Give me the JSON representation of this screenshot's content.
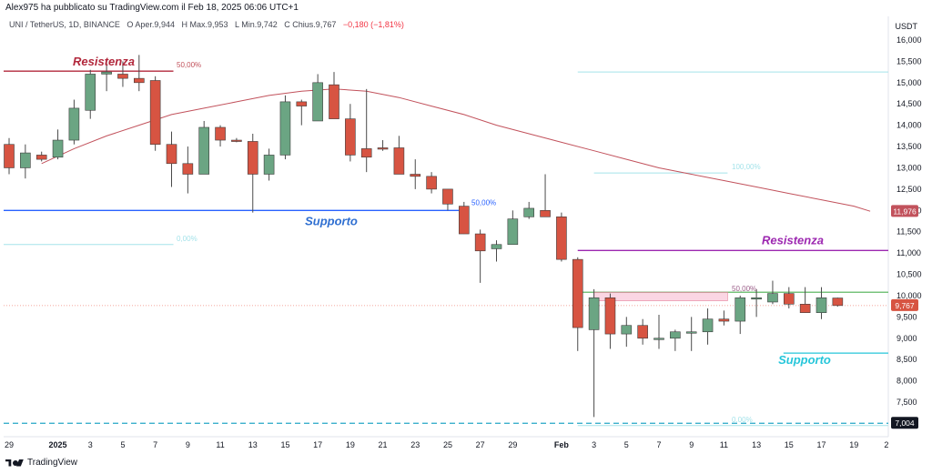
{
  "header": {
    "published_by": "Alex975 ha pubblicato su TradingView.com il Feb 18, 2025 06:06 UTC+1",
    "symbol": "UNI / TetherUS, 1D, BINANCE",
    "open_label": "O",
    "open": "Aper.9,944",
    "high_label": "H",
    "high": "Max.9,953",
    "low_label": "L",
    "low": "Min.9,742",
    "close_label": "C",
    "close": "Chius.9,767",
    "change": "−0,180 (−1,81%)"
  },
  "brand": "TradingView",
  "colors": {
    "up": "#6ba583",
    "down": "#d75442",
    "ma": "#c2525c",
    "support": "#2962ff",
    "resistance": "#9c27b0",
    "teal": "#26c6da"
  },
  "chart_data": {
    "type": "candlestick",
    "unit": "USDT",
    "ylim": [
      6700,
      16300
    ],
    "y_ticks": [
      {
        "v": 16000,
        "label": "16,000"
      },
      {
        "v": 15500,
        "label": "15,500"
      },
      {
        "v": 15000,
        "label": "15,000"
      },
      {
        "v": 14500,
        "label": "14,500"
      },
      {
        "v": 14000,
        "label": "14,000"
      },
      {
        "v": 13500,
        "label": "13,500"
      },
      {
        "v": 13000,
        "label": "13,000"
      },
      {
        "v": 12500,
        "label": "12,500"
      },
      {
        "v": 12000,
        "label": "12,000"
      },
      {
        "v": 11500,
        "label": "11,500"
      },
      {
        "v": 11000,
        "label": "11,000"
      },
      {
        "v": 10500,
        "label": "10,500"
      },
      {
        "v": 10000,
        "label": "10,000"
      },
      {
        "v": 9500,
        "label": "9,500"
      },
      {
        "v": 9000,
        "label": "9,000"
      },
      {
        "v": 8500,
        "label": "8,500"
      },
      {
        "v": 8000,
        "label": "8,000"
      },
      {
        "v": 7500,
        "label": "7,500"
      }
    ],
    "x_ticks": [
      {
        "i": 0,
        "label": "29"
      },
      {
        "i": 3,
        "label": "2025"
      },
      {
        "i": 5,
        "label": "3"
      },
      {
        "i": 7,
        "label": "5"
      },
      {
        "i": 9,
        "label": "7"
      },
      {
        "i": 11,
        "label": "9"
      },
      {
        "i": 13,
        "label": "11"
      },
      {
        "i": 15,
        "label": "13"
      },
      {
        "i": 17,
        "label": "15"
      },
      {
        "i": 19,
        "label": "17"
      },
      {
        "i": 21,
        "label": "19"
      },
      {
        "i": 23,
        "label": "21"
      },
      {
        "i": 25,
        "label": "23"
      },
      {
        "i": 27,
        "label": "25"
      },
      {
        "i": 29,
        "label": "27"
      },
      {
        "i": 31,
        "label": "29"
      },
      {
        "i": 34,
        "label": "Feb"
      },
      {
        "i": 36,
        "label": "3"
      },
      {
        "i": 38,
        "label": "5"
      },
      {
        "i": 40,
        "label": "7"
      },
      {
        "i": 42,
        "label": "9"
      },
      {
        "i": 44,
        "label": "11"
      },
      {
        "i": 46,
        "label": "13"
      },
      {
        "i": 48,
        "label": "15"
      },
      {
        "i": 50,
        "label": "17"
      },
      {
        "i": 52,
        "label": "19"
      },
      {
        "i": 54,
        "label": "2"
      }
    ],
    "candles": [
      [
        13550,
        13700,
        12850,
        13000
      ],
      [
        13000,
        13550,
        12750,
        13350
      ],
      [
        13300,
        13380,
        13150,
        13200
      ],
      [
        13250,
        13900,
        13200,
        13650
      ],
      [
        13650,
        14600,
        13550,
        14400
      ],
      [
        14350,
        15300,
        14150,
        15200
      ],
      [
        15200,
        15500,
        14800,
        15250
      ],
      [
        15200,
        15500,
        14900,
        15100
      ],
      [
        15100,
        15650,
        14800,
        15000
      ],
      [
        15050,
        15150,
        13400,
        13550
      ],
      [
        13550,
        13850,
        12550,
        13100
      ],
      [
        13100,
        13500,
        12400,
        12850
      ],
      [
        12850,
        14100,
        12850,
        13950
      ],
      [
        13950,
        14000,
        13500,
        13650
      ],
      [
        13650,
        13700,
        13600,
        13620
      ],
      [
        13620,
        13800,
        11950,
        12850
      ],
      [
        12850,
        13450,
        12700,
        13300
      ],
      [
        13300,
        14700,
        13200,
        14550
      ],
      [
        14550,
        14600,
        14000,
        14450
      ],
      [
        14100,
        15200,
        14100,
        15000
      ],
      [
        14950,
        15250,
        14200,
        14150
      ],
      [
        14150,
        14500,
        13150,
        13300
      ],
      [
        13450,
        14850,
        12900,
        13250
      ],
      [
        13470,
        13650,
        13400,
        13450
      ],
      [
        13470,
        13750,
        12850,
        12850
      ],
      [
        12850,
        13200,
        12500,
        12800
      ],
      [
        12800,
        12900,
        12400,
        12500
      ],
      [
        12500,
        12500,
        12000,
        12150
      ],
      [
        12100,
        12200,
        11450,
        11450
      ],
      [
        11450,
        11550,
        10300,
        11050
      ],
      [
        11100,
        11300,
        10800,
        11200
      ],
      [
        11200,
        12000,
        11200,
        11800
      ],
      [
        11850,
        12200,
        11800,
        12050
      ],
      [
        12000,
        12850,
        11850,
        11850
      ],
      [
        11850,
        11950,
        10800,
        10850
      ],
      [
        10850,
        10900,
        8700,
        9250
      ],
      [
        9200,
        10150,
        7150,
        9950
      ],
      [
        9950,
        10050,
        8750,
        9100
      ],
      [
        9100,
        9500,
        8800,
        9300
      ],
      [
        9300,
        9450,
        8850,
        9000
      ],
      [
        9000,
        9550,
        8750,
        9000
      ],
      [
        9000,
        9200,
        8700,
        9150
      ],
      [
        9150,
        9500,
        8700,
        9150
      ],
      [
        9150,
        9700,
        8850,
        9450
      ],
      [
        9450,
        9650,
        9300,
        9400
      ],
      [
        9400,
        10000,
        9100,
        9950
      ],
      [
        9950,
        10150,
        9500,
        9950
      ],
      [
        9850,
        10350,
        9800,
        10050
      ],
      [
        10050,
        10200,
        9700,
        9800
      ],
      [
        9800,
        10200,
        9600,
        9600
      ],
      [
        9600,
        10200,
        9450,
        9950
      ],
      [
        9944,
        9953,
        9742,
        9767
      ]
    ],
    "moving_average": [
      [
        2,
        13100
      ],
      [
        4,
        13450
      ],
      [
        6,
        13750
      ],
      [
        8,
        14000
      ],
      [
        10,
        14250
      ],
      [
        12,
        14400
      ],
      [
        14,
        14550
      ],
      [
        16,
        14700
      ],
      [
        18,
        14800
      ],
      [
        20,
        14850
      ],
      [
        22,
        14800
      ],
      [
        24,
        14650
      ],
      [
        26,
        14450
      ],
      [
        28,
        14250
      ],
      [
        30,
        14000
      ],
      [
        32,
        13800
      ],
      [
        34,
        13600
      ],
      [
        36,
        13400
      ],
      [
        38,
        13200
      ],
      [
        40,
        13000
      ],
      [
        42,
        12850
      ],
      [
        44,
        12700
      ],
      [
        46,
        12550
      ],
      [
        48,
        12400
      ],
      [
        50,
        12250
      ],
      [
        52,
        12100
      ],
      [
        53,
        11980
      ]
    ],
    "price_labels": [
      {
        "v": 11976,
        "label": "11,976",
        "color": "#c2525c"
      },
      {
        "v": 9767,
        "label": "9,767",
        "color": "#d75442"
      },
      {
        "v": 7004,
        "label": "7,004",
        "color": "#131722"
      }
    ],
    "annotations": {
      "resistance_1": "Resistenza",
      "resistance_1_fib": "50,00%",
      "support_1": "Supporto",
      "support_1_fib": "50,00%",
      "support_1_fib0": "0,00%",
      "fib_top": "100,00%",
      "resistance_2": "Resistenza",
      "fib_mid": "50,00%",
      "support_2": "Supporto",
      "fib_bottom": "0,00%"
    }
  }
}
